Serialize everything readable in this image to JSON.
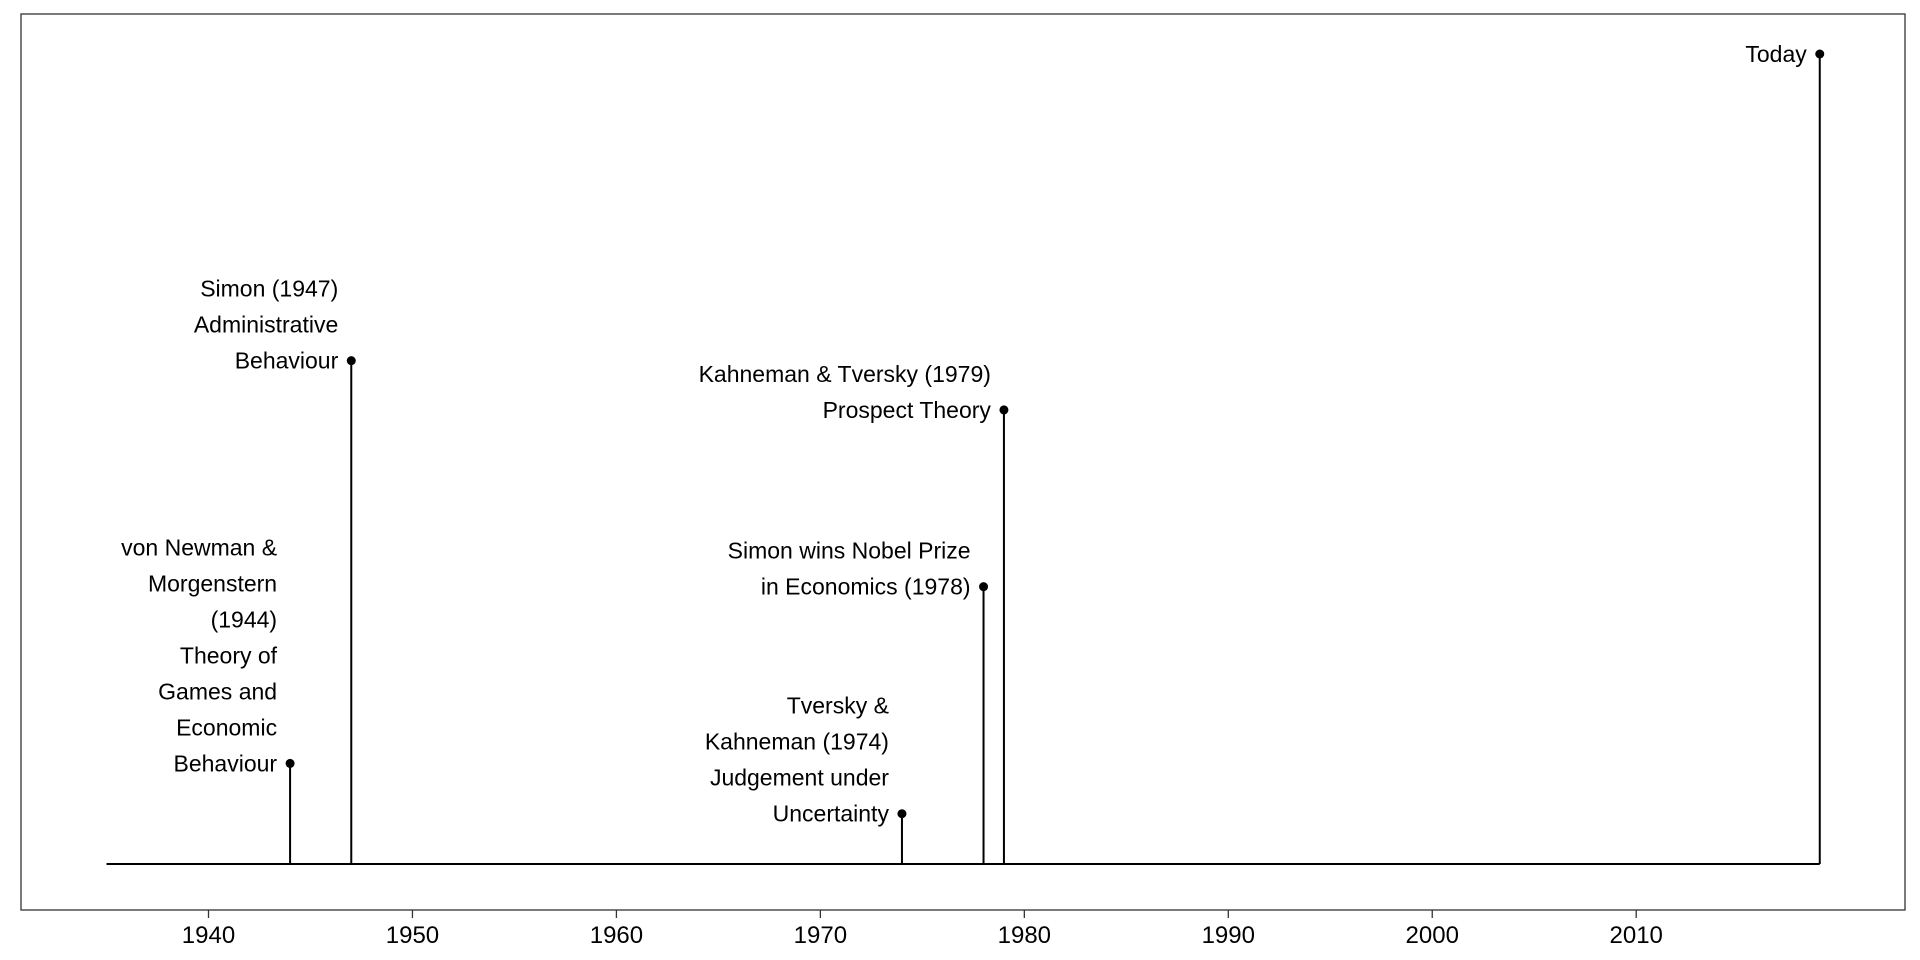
{
  "chart_data": {
    "type": "timeline",
    "title": "",
    "xlabel": "",
    "ylabel": "",
    "xlim": [
      1934,
      2023
    ],
    "grid": false,
    "x_ticks": [
      1940,
      1950,
      1960,
      1970,
      1980,
      1990,
      2000,
      2010
    ],
    "events": [
      {
        "year": 1944,
        "height": 0.1242,
        "label_lines": [
          "von Newman &",
          "Morgenstern",
          "(1944)",
          "Theory of",
          "Games and",
          "Economic",
          "Behaviour"
        ]
      },
      {
        "year": 1947,
        "height": 0.6214,
        "label_lines": [
          "Simon (1947)",
          "Administrative",
          "Behaviour"
        ]
      },
      {
        "year": 1974,
        "height": 0.0621,
        "label_lines": [
          "Tversky &",
          "Kahneman (1974)",
          "Judgement under",
          "Uncertainty"
        ]
      },
      {
        "year": 1978,
        "height": 0.3424,
        "label_lines": [
          "Simon wins Nobel Prize",
          "in Economics (1978)"
        ]
      },
      {
        "year": 1979,
        "height": 0.5606,
        "label_lines": [
          "Kahneman & Tversky (1979)",
          "Prospect Theory"
        ]
      },
      {
        "year": 2019,
        "height": 1.0,
        "label_lines": [
          "Today"
        ]
      }
    ]
  }
}
